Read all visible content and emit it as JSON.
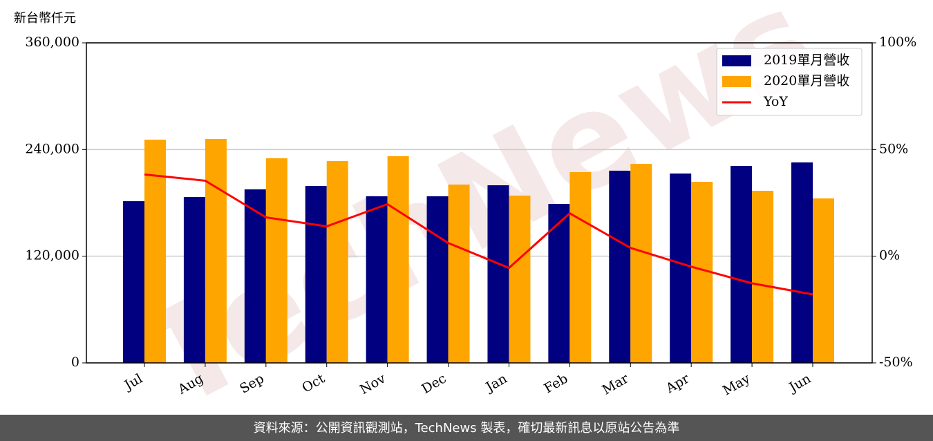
{
  "chart_data": {
    "type": "bar_line",
    "y_axis_label": "新台幣仟元",
    "watermark": "TechNews",
    "footer": "資料來源：公開資訊觀測站，TechNews 製表，確切最新訊息以原站公告為準",
    "categories": [
      "Jul",
      "Aug",
      "Sep",
      "Oct",
      "Nov",
      "Dec",
      "Jan",
      "Feb",
      "Mar",
      "Apr",
      "May",
      "Jun"
    ],
    "series": [
      {
        "name": "2019單月營收",
        "color": "#000080",
        "type": "bar",
        "values": [
          181900,
          186600,
          195200,
          199000,
          187400,
          187400,
          199800,
          178800,
          216200,
          213000,
          221600,
          225500
        ]
      },
      {
        "name": "2020單月營收",
        "color": "#ffa500",
        "type": "bar",
        "values": [
          251100,
          251900,
          230200,
          227000,
          232500,
          200600,
          188200,
          214600,
          223900,
          203700,
          193600,
          185000
        ]
      },
      {
        "name": "YoY",
        "color": "#ff0000",
        "type": "line",
        "axis": "y2",
        "values": [
          38.3,
          35.4,
          18.2,
          14.0,
          24.4,
          6.2,
          -5.5,
          20.1,
          3.9,
          -4.9,
          -12.7,
          -17.9
        ]
      }
    ],
    "ylim": [
      0,
      360000
    ],
    "yticks": [
      0,
      {
        "value": 120000,
        "label": "120,000"
      },
      {
        "value": 240000,
        "label": "240,000"
      },
      {
        "value": 360000,
        "label": "360,000"
      }
    ],
    "y2lim": [
      -50,
      100
    ],
    "y2ticks": [
      {
        "value": -50,
        "label": "-50%"
      },
      {
        "value": 0,
        "label": "0%"
      },
      {
        "value": 50,
        "label": "50%"
      },
      {
        "value": 100,
        "label": "100%"
      }
    ],
    "grid": true,
    "legend": "upper right"
  }
}
